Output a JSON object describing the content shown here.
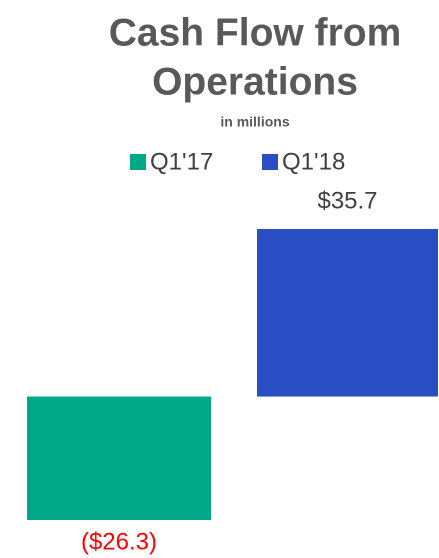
{
  "chart_data": {
    "type": "bar",
    "title": "Cash Flow from Operations",
    "subtitle": "in millions",
    "series": [
      {
        "name": "Q1'17",
        "color": "#00a887",
        "label_color": "#ff0000",
        "values": [
          -26.3
        ],
        "value_labels": [
          "($26.3)"
        ]
      },
      {
        "name": "Q1'18",
        "color": "#2a4fc4",
        "label_color": "#404040",
        "values": [
          35.7
        ],
        "value_labels": [
          "$35.7"
        ]
      }
    ]
  }
}
